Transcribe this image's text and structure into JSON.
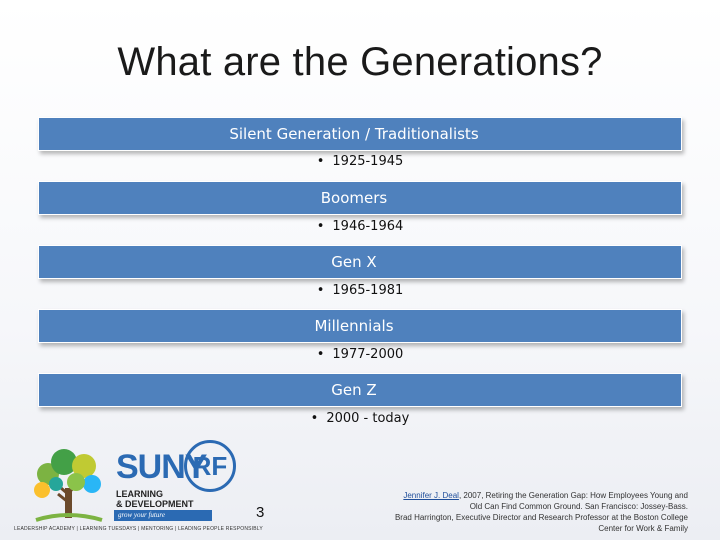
{
  "slide": {
    "title": "What are the Generations?",
    "page_number": "3"
  },
  "generations": [
    {
      "name": "Silent Generation / Traditionalists",
      "years": "1925-1945"
    },
    {
      "name": "Boomers",
      "years": "1946-1964"
    },
    {
      "name": "Gen X",
      "years": "1965-1981"
    },
    {
      "name": "Millennials",
      "years": "1977-2000"
    },
    {
      "name": "Gen Z",
      "years": "2000 - today"
    }
  ],
  "bullet_symbol": "•",
  "logo": {
    "suny": "SUNY",
    "rf": "RF",
    "line1": "LEARNING",
    "line2": "& DEVELOPMENT",
    "motto": "grow your future",
    "tagline": "LEADERSHIP ACADEMY | LEARNING TUESDAYS | MENTORING | LEADING PEOPLE RESPONSIBLY"
  },
  "citation": {
    "author": "Jennifer J. Deal",
    "line1_rest": ", 2007, Retiring the Generation Gap: How Employees Young and",
    "line2": "Old Can Find Common Ground. San Francisco: Jossey-Bass.",
    "line3": "Brad Harrington, Executive Director and Research Professor at the Boston College",
    "line4": "Center for Work & Family"
  },
  "colors": {
    "bar": "#4f81bd",
    "logo_blue": "#2b6ab3"
  }
}
